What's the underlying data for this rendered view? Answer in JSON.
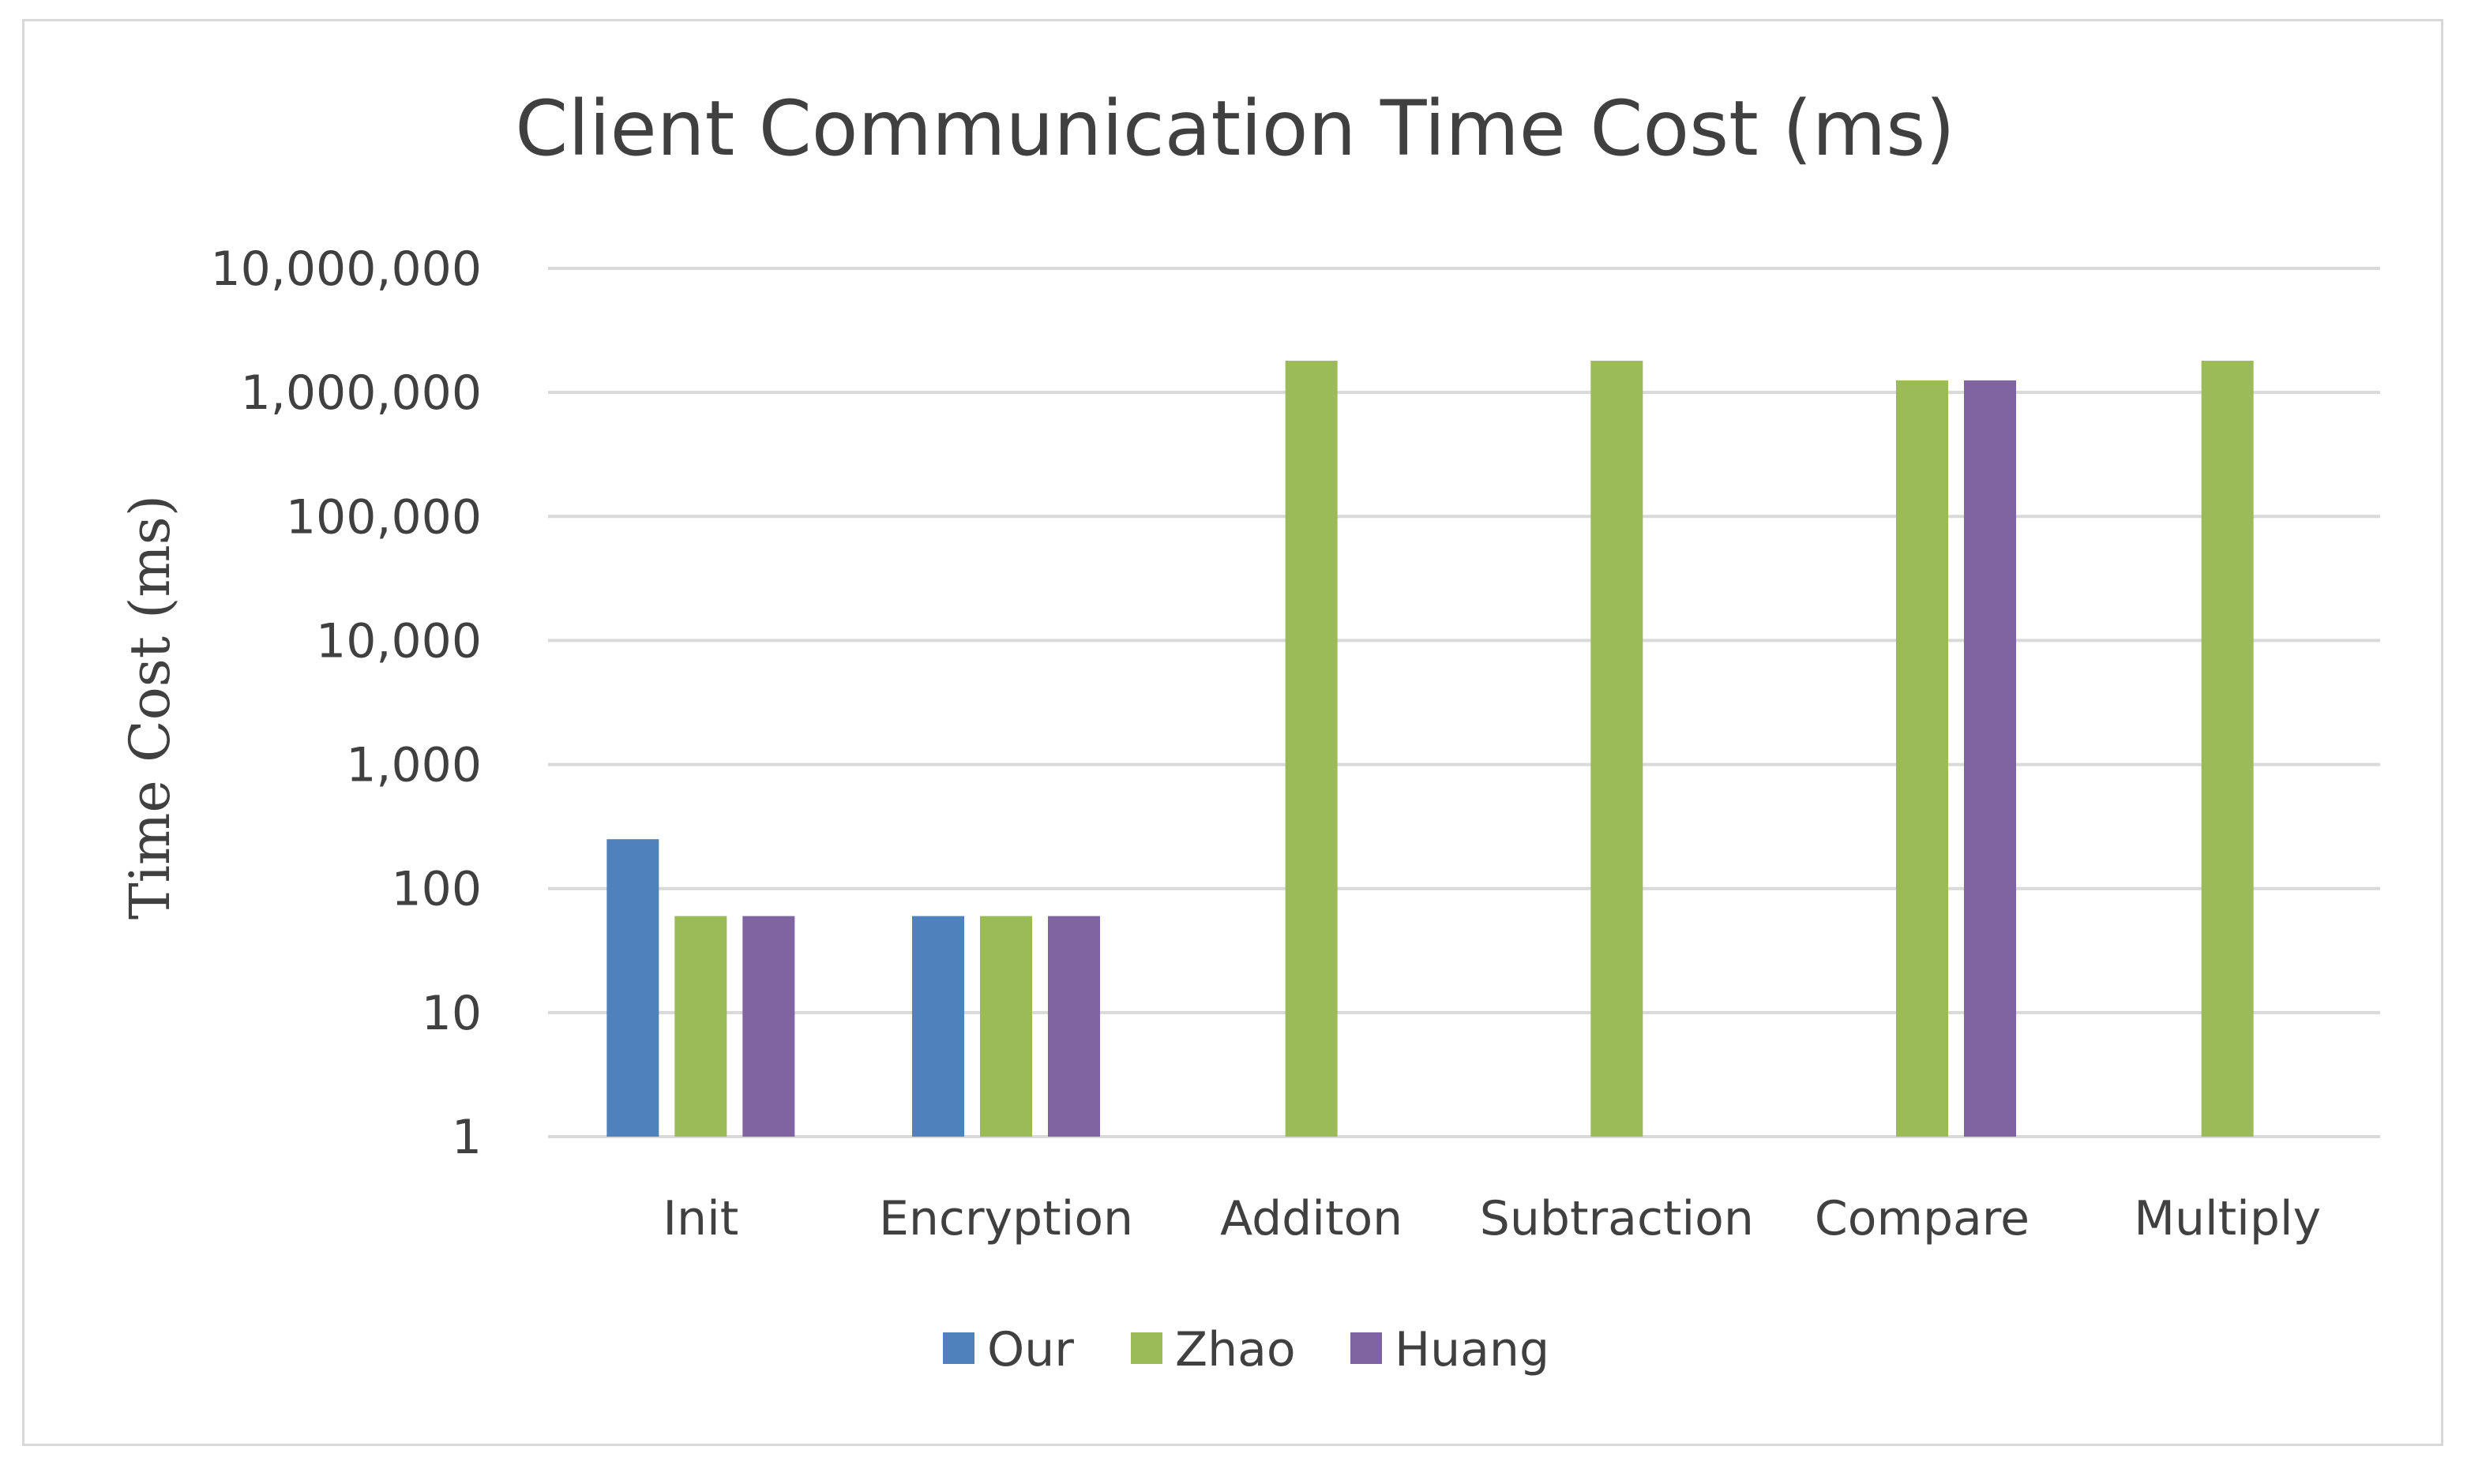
{
  "chart_data": {
    "type": "bar",
    "title": "Client Communication Time Cost (ms)",
    "xlabel": "",
    "ylabel": "Time Cost (ms)",
    "yscale": "log",
    "ylim": [
      1,
      10000000
    ],
    "yticks": [
      1,
      10,
      100,
      1000,
      10000,
      100000,
      1000000,
      10000000
    ],
    "ytick_labels": [
      "1",
      "10",
      "100",
      "1,000",
      "10,000",
      "100,000",
      "1,000,000",
      "10,000,000"
    ],
    "categories": [
      "Init",
      "Encryption",
      "Additon",
      "Subtraction",
      "Compare",
      "Multiply"
    ],
    "series": [
      {
        "name": "Our",
        "color": "#4f81bd",
        "values": [
          250,
          60,
          null,
          null,
          null,
          null
        ]
      },
      {
        "name": "Zhao",
        "color": "#9bbb59",
        "values": [
          60,
          60,
          1800000,
          1800000,
          1250000,
          1800000
        ]
      },
      {
        "name": "Huang",
        "color": "#8064a2",
        "values": [
          60,
          60,
          null,
          null,
          1250000,
          null
        ]
      }
    ],
    "grid": true,
    "gridline_color": "#d9d9d9",
    "legend_position": "bottom"
  }
}
